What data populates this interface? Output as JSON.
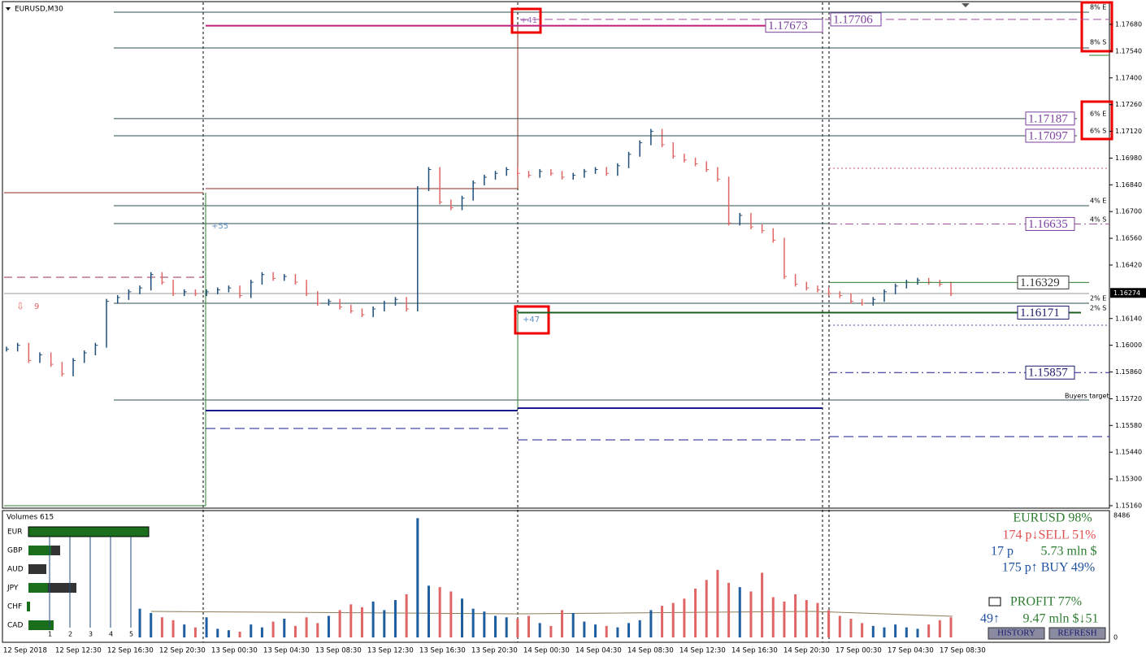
{
  "symbol": "EURUSD,M30",
  "price_axis": {
    "ylim": [
      1.15147,
      1.17795
    ],
    "current": {
      "value": 1.16274,
      "label": "1.16274"
    },
    "ticks": [
      {
        "value": 1.1768,
        "label": "1.17680"
      },
      {
        "value": 1.1754,
        "label": "1.17540"
      },
      {
        "value": 1.174,
        "label": "1.17400"
      },
      {
        "value": 1.1726,
        "label": "1.17260"
      },
      {
        "value": 1.1712,
        "label": "1.17120"
      },
      {
        "value": 1.1698,
        "label": "1.16980"
      },
      {
        "value": 1.1684,
        "label": "1.16840"
      },
      {
        "value": 1.167,
        "label": "1.16700"
      },
      {
        "value": 1.1656,
        "label": "1.16560"
      },
      {
        "value": 1.1642,
        "label": "1.16420"
      },
      {
        "value": 1.1614,
        "label": "1.16140"
      },
      {
        "value": 1.16,
        "label": "1.16000"
      },
      {
        "value": 1.1586,
        "label": "1.15860"
      },
      {
        "value": 1.1572,
        "label": "1.15720"
      },
      {
        "value": 1.1558,
        "label": "1.15580"
      },
      {
        "value": 1.1544,
        "label": "1.15440"
      },
      {
        "value": 1.153,
        "label": "1.15300"
      },
      {
        "value": 1.1516,
        "label": "1.15160"
      }
    ]
  },
  "time_labels": [
    "12 Sep 2018",
    "12 Sep 12:30",
    "12 Sep 16:30",
    "12 Sep 20:30",
    "13 Sep 00:30",
    "13 Sep 04:30",
    "13 Sep 08:30",
    "13 Sep 12:30",
    "13 Sep 16:30",
    "13 Sep 20:30",
    "14 Sep 00:30",
    "14 Sep 04:30",
    "14 Sep 08:30",
    "14 Sep 12:30",
    "14 Sep 16:30",
    "14 Sep 20:30",
    "17 Sep 00:30",
    "17 Sep 04:30",
    "17 Sep 08:30"
  ],
  "price_chart": {
    "closes": [
      1.1598,
      1.16,
      1.1592,
      1.1595,
      1.159,
      1.1585,
      1.1592,
      1.1596,
      1.16,
      1.1623,
      1.1625,
      1.1628,
      1.163,
      1.1637,
      1.1633,
      1.1627,
      1.1628,
      1.1627,
      1.1628,
      1.1629,
      1.163,
      1.1626,
      1.1633,
      1.1637,
      1.1635,
      1.1636,
      1.1633,
      1.1627,
      1.1622,
      1.1623,
      1.162,
      1.1618,
      1.1616,
      1.1619,
      1.1622,
      1.1624,
      1.1619,
      1.1682,
      1.1692,
      1.1675,
      1.1672,
      1.1677,
      1.1685,
      1.1688,
      1.169,
      1.1692,
      1.169,
      1.1689,
      1.1691,
      1.169,
      1.1688,
      1.1689,
      1.1691,
      1.1692,
      1.169,
      1.1694,
      1.17,
      1.1706,
      1.1712,
      1.1705,
      1.1699,
      1.1697,
      1.1695,
      1.1692,
      1.1687,
      1.1664,
      1.1668,
      1.1662,
      1.166,
      1.1655,
      1.1636,
      1.1632,
      1.163,
      1.1629,
      1.1627,
      1.1626,
      1.1623,
      1.1622,
      1.1624,
      1.1628,
      1.1631,
      1.1633,
      1.1634,
      1.1633,
      1.1632,
      1.1627
    ],
    "levels": [
      {
        "value": 1.17706,
        "label": "1.17706"
      },
      {
        "value": 1.17673,
        "label": "1.17673"
      },
      {
        "value": 1.17187,
        "label": "1.17187"
      },
      {
        "value": 1.17097,
        "label": "1.17097"
      },
      {
        "value": 1.16635,
        "label": "1.16635"
      },
      {
        "value": 1.16329,
        "label": "1.16329"
      },
      {
        "value": 1.16171,
        "label": "1.16171"
      },
      {
        "value": 1.15857,
        "label": "1.15857"
      }
    ],
    "zone_labels": [
      "8% E",
      "8% S",
      "6% E",
      "6% S",
      "4% E",
      "4% S",
      "2% E",
      "2% S",
      "Buyers target"
    ],
    "annotations": [
      "+41",
      "+47",
      "+55",
      "9"
    ]
  },
  "volumes_panel": {
    "title": "Volumes 615",
    "ylim": [
      0,
      8486
    ],
    "max_label": "8486",
    "zero_label": "0",
    "currencies": [
      "EUR",
      "GBP",
      "AUD",
      "JPY",
      "CHF",
      "CAD"
    ],
    "scale_numbers": [
      1,
      2,
      3,
      4,
      5
    ],
    "volumes": [
      2000,
      1700,
      1400,
      1200,
      900,
      700,
      1400,
      600,
      500,
      400,
      900,
      700,
      1100,
      1300,
      800,
      1400,
      1000,
      1500,
      1900,
      2300,
      2100,
      2500,
      1900,
      2600,
      3000,
      8300,
      3600,
      3500,
      3200,
      2700,
      2000,
      1800,
      1500,
      1400,
      1300,
      1500,
      1000,
      800,
      1900,
      1700,
      1100,
      900,
      800,
      700,
      1000,
      1200,
      1900,
      2200,
      2400,
      2700,
      3400,
      4000,
      4700,
      3800,
      3500,
      3200,
      4500,
      2800,
      2500,
      3000,
      2600,
      2400,
      1900,
      1500,
      1300,
      1000,
      800,
      700,
      900,
      700,
      600,
      900,
      1200,
      1400
    ]
  },
  "stats": {
    "headline": "EURUSD 98%",
    "sell": "174 p↓SELL 51%",
    "pips": "17 p",
    "amount": "5.73 mln $",
    "buy": "175 p↑ BUY 49%",
    "profit": "PROFIT 77%",
    "count": "49↑",
    "summary": "9.47 mln $↓51",
    "buttons": [
      "HISTORY",
      "REFRESH"
    ]
  }
}
